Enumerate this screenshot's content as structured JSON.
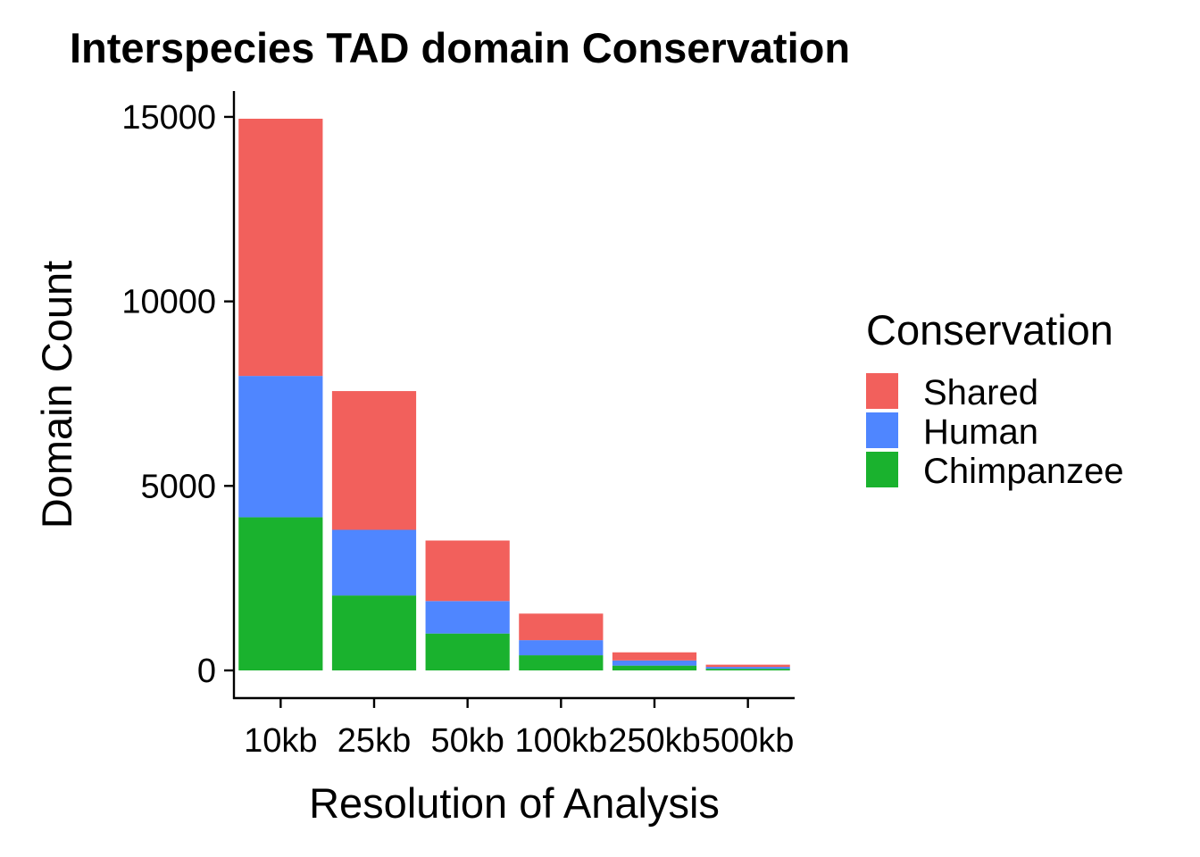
{
  "chart_data": {
    "type": "bar",
    "stacked": true,
    "title": "Interspecies TAD domain Conservation",
    "xlabel": "Resolution of Analysis",
    "ylabel": "Domain Count",
    "categories": [
      "10kb",
      "25kb",
      "50kb",
      "100kb",
      "250kb",
      "500kb"
    ],
    "yticks": [
      0,
      5000,
      10000,
      15000
    ],
    "ylim": [
      -750,
      15700
    ],
    "grid": false,
    "legend": {
      "title": "Conservation",
      "position": "right"
    },
    "series": [
      {
        "name": "Chimpanzee",
        "color": "#1AB22E",
        "values": [
          4150,
          2030,
          1000,
          410,
          130,
          45
        ]
      },
      {
        "name": "Human",
        "color": "#4F86FF",
        "values": [
          3830,
          1780,
          880,
          410,
          140,
          50
        ]
      },
      {
        "name": "Shared",
        "color": "#F2605C",
        "values": [
          6970,
          3760,
          1640,
          720,
          220,
          60
        ]
      }
    ],
    "legend_order": [
      "Shared",
      "Human",
      "Chimpanzee"
    ]
  }
}
